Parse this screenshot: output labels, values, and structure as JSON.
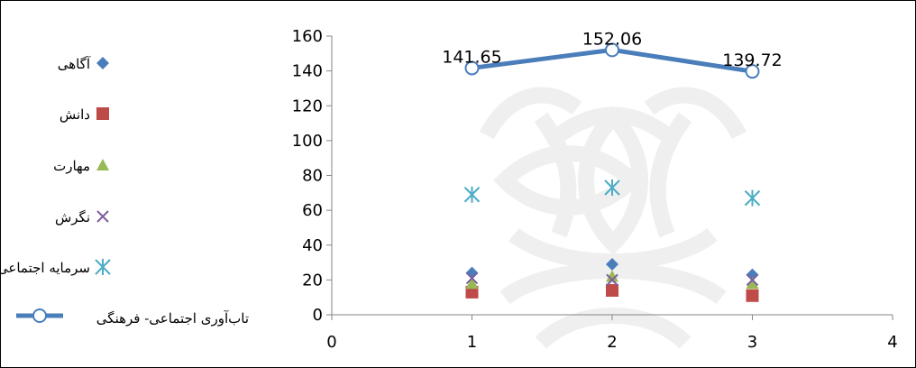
{
  "chart_data": {
    "type": "scatter",
    "title": "",
    "xlabel": "",
    "ylabel": "",
    "xlim": [
      0,
      4
    ],
    "ylim": [
      0,
      160
    ],
    "x_ticks": [
      "0",
      "1",
      "2",
      "3",
      "4"
    ],
    "y_ticks": [
      "0",
      "20",
      "40",
      "60",
      "80",
      "100",
      "120",
      "140",
      "160"
    ],
    "grid": false,
    "legend_position": "left",
    "x": [
      1,
      2,
      3
    ],
    "series": [
      {
        "name": "آگاهی",
        "values": [
          24,
          29,
          23
        ],
        "marker": "diamond",
        "color": "#4a7ebb"
      },
      {
        "name": "دانش",
        "values": [
          13,
          14,
          11
        ],
        "marker": "square",
        "color": "#be4b48"
      },
      {
        "name": "مهارت",
        "values": [
          18,
          22,
          18
        ],
        "marker": "triangle",
        "color": "#98b954"
      },
      {
        "name": "نگرش",
        "values": [
          21,
          20,
          20
        ],
        "marker": "x",
        "color": "#7d5fa0"
      },
      {
        "name": "سرمایه اجتماعی",
        "values": [
          69,
          73,
          67
        ],
        "marker": "star",
        "color": "#4bacc6"
      },
      {
        "name": "تاب‌آوری اجتماعی- فرهنگی",
        "values": [
          141.65,
          152.06,
          139.72
        ],
        "marker": "circle-line",
        "color": "#4a7ebb",
        "data_labels": [
          "141.65",
          "152.06",
          "139.72"
        ]
      }
    ]
  }
}
